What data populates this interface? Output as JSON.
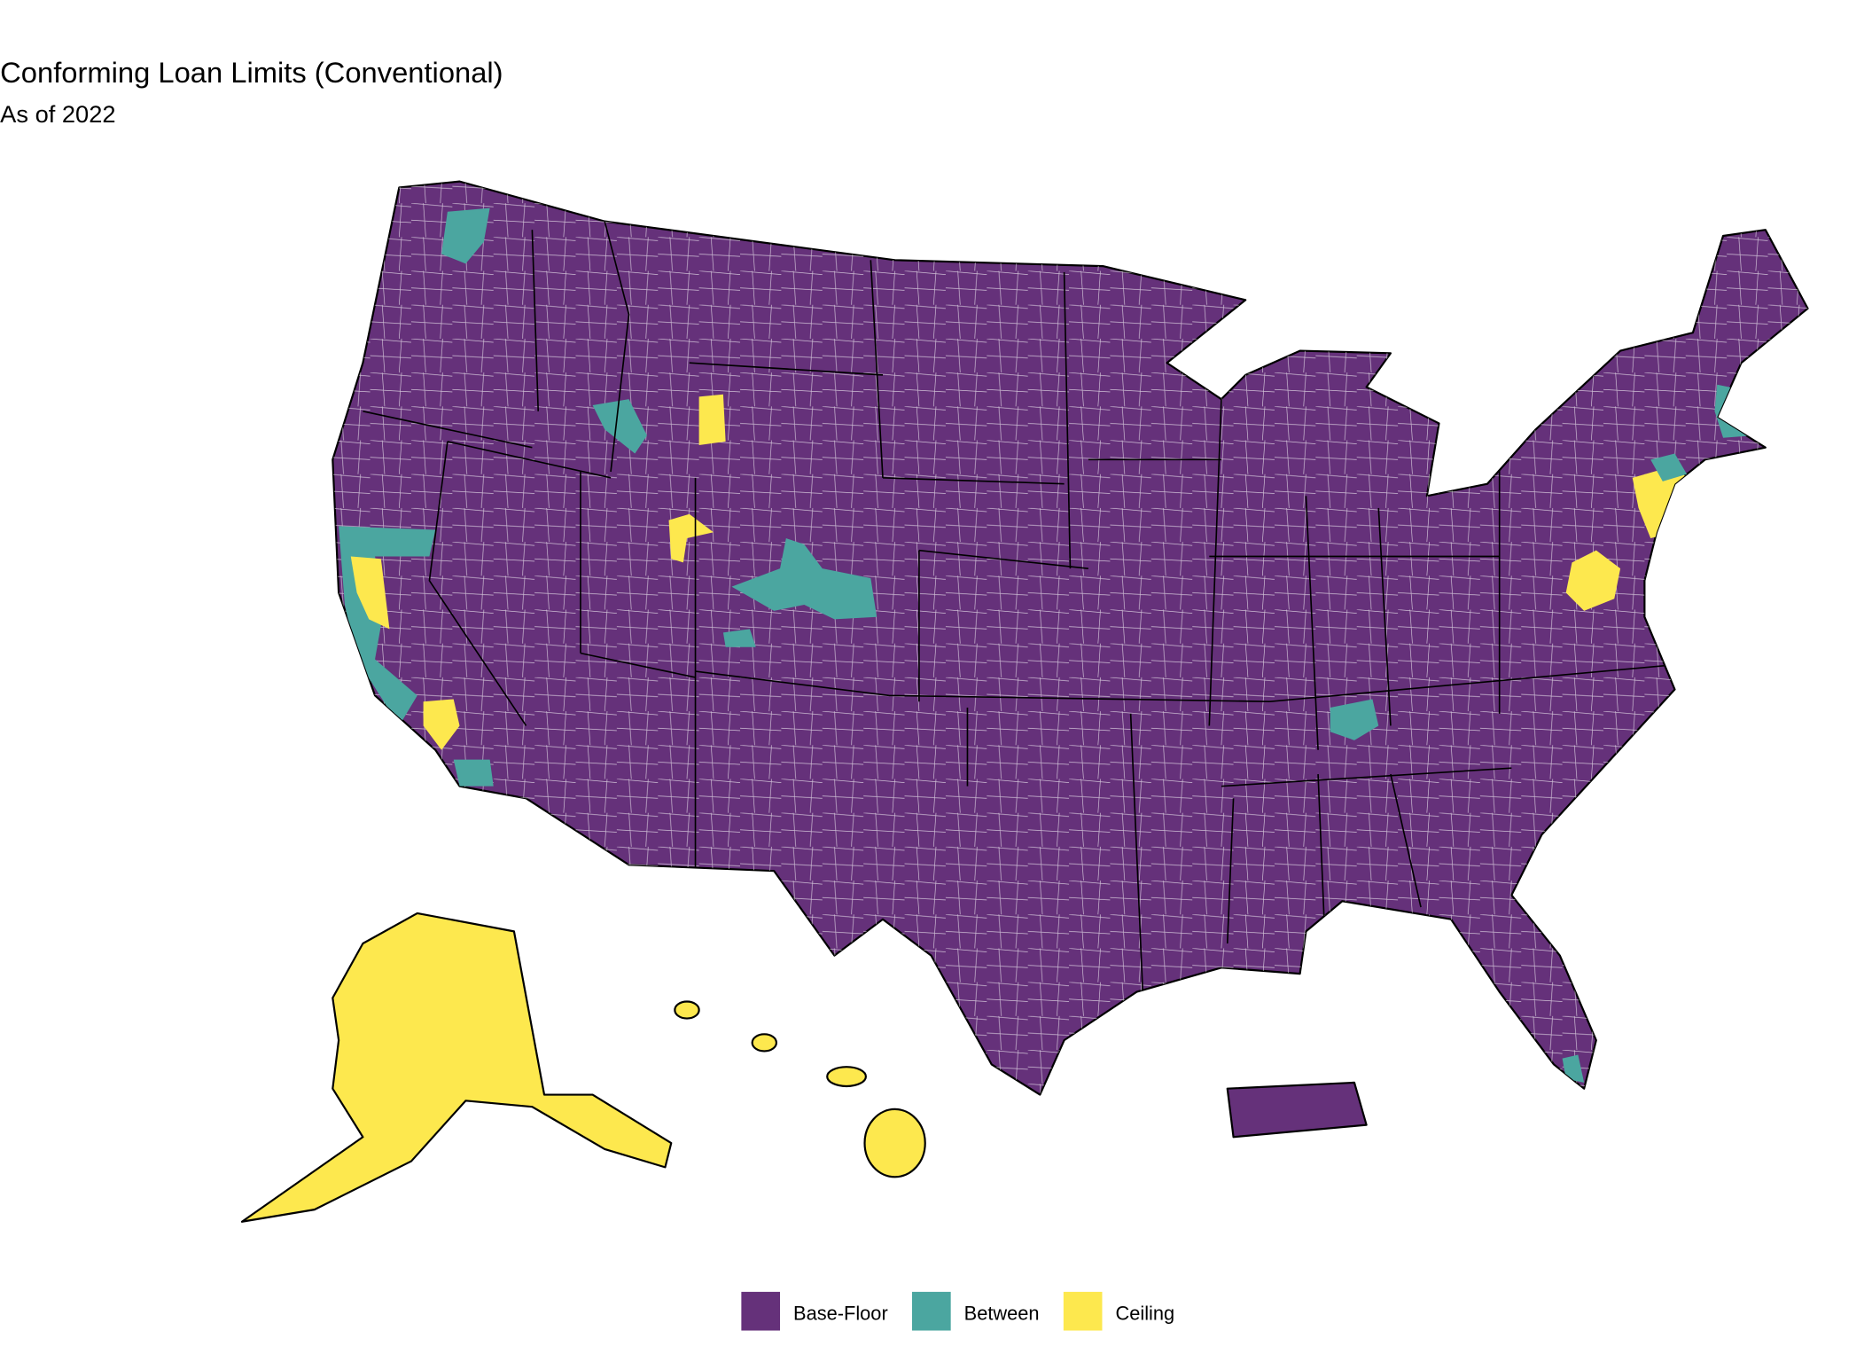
{
  "title": "Conforming Loan Limits (Conventional)",
  "subtitle": "As of 2022",
  "legend": {
    "items": [
      {
        "label": "Base-Floor",
        "color": "#65317a"
      },
      {
        "label": "Between",
        "color": "#4ba6a0"
      },
      {
        "label": "Ceiling",
        "color": "#fde84e"
      }
    ]
  }
}
